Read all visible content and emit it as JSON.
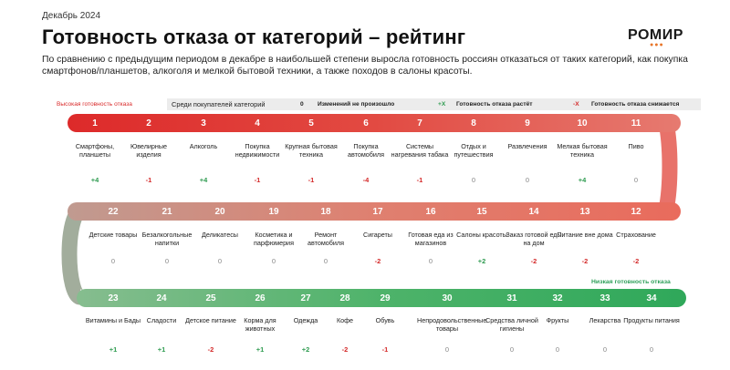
{
  "header": {
    "date": "Декабрь 2024",
    "title": "Готовность отказа от категорий – рейтинг",
    "logo": "РОМИР",
    "subtitle": "По сравнению с предыдущим периодом в декабре в наибольшей степени выросла готовность россиян отказаться от таких категорий, как покупка смартфонов/планшетов, алкоголя и мелкой бытовой техники, а также походов в салоны красоты."
  },
  "legend": {
    "high": "Высокая готовность отказа",
    "among": "Среди покупателей категорий",
    "zero_sym": "0",
    "zero_text": "Изменений не произошло",
    "up_sym": "+X",
    "up_text": "Готовность отказа растёт",
    "down_sym": "-X",
    "down_text": "Готовность отказа снижается",
    "low": "Низкая готовность отказа"
  },
  "colors": {
    "high": "#d92a2a",
    "low": "#2fa05a",
    "zero": "#888888"
  },
  "rows": [
    [
      {
        "n": "1",
        "label": "Смартфоны, планшеты",
        "change": "+4"
      },
      {
        "n": "2",
        "label": "Ювелирные изделия",
        "change": "-1"
      },
      {
        "n": "3",
        "label": "Алкоголь",
        "change": "+4"
      },
      {
        "n": "4",
        "label": "Покупка недвижимости",
        "change": "-1"
      },
      {
        "n": "5",
        "label": "Крупная бытовая техника",
        "change": "-1"
      },
      {
        "n": "6",
        "label": "Покупка автомобиля",
        "change": "-4"
      },
      {
        "n": "7",
        "label": "Системы нагревания табака",
        "change": "-1"
      },
      {
        "n": "8",
        "label": "Отдых и путешествия",
        "change": "0"
      },
      {
        "n": "9",
        "label": "Развлечения",
        "change": "0"
      },
      {
        "n": "10",
        "label": "Мелкая бытовая техника",
        "change": "+4"
      },
      {
        "n": "11",
        "label": "Пиво",
        "change": "0"
      }
    ],
    [
      {
        "n": "22",
        "label": "Детские товары",
        "change": "0"
      },
      {
        "n": "21",
        "label": "Безалкогольные напитки",
        "change": "0"
      },
      {
        "n": "20",
        "label": "Деликатесы",
        "change": "0"
      },
      {
        "n": "19",
        "label": "Косметика и парфюмерия",
        "change": "0"
      },
      {
        "n": "18",
        "label": "Ремонт автомобиля",
        "change": "0"
      },
      {
        "n": "17",
        "label": "Сигареты",
        "change": "-2"
      },
      {
        "n": "16",
        "label": "Готовая еда из магазинов",
        "change": "0"
      },
      {
        "n": "15",
        "label": "Салоны красоты",
        "change": "+2"
      },
      {
        "n": "14",
        "label": "Заказ готовой еды на дом",
        "change": "-2"
      },
      {
        "n": "13",
        "label": "Питание вне дома",
        "change": "-2"
      },
      {
        "n": "12",
        "label": "Страхование",
        "change": "-2"
      }
    ],
    [
      {
        "n": "23",
        "label": "Витамины и Бады",
        "change": "+1"
      },
      {
        "n": "24",
        "label": "Сладости",
        "change": "+1"
      },
      {
        "n": "25",
        "label": "Детское питание",
        "change": "-2"
      },
      {
        "n": "26",
        "label": "Корма для животных",
        "change": "+1"
      },
      {
        "n": "27",
        "label": "Одежда",
        "change": "+2"
      },
      {
        "n": "28",
        "label": "Кофе",
        "change": "-2"
      },
      {
        "n": "29",
        "label": "Обувь",
        "change": "-1"
      },
      {
        "n": "30",
        "label": "Непродовольственные товары",
        "change": "0"
      },
      {
        "n": "31",
        "label": "Средства личной гигиены",
        "change": "0"
      },
      {
        "n": "32",
        "label": "Фрукты",
        "change": "0"
      },
      {
        "n": "33",
        "label": "Лекарства",
        "change": "0"
      },
      {
        "n": "34",
        "label": "Продукты питания",
        "change": "0"
      }
    ]
  ]
}
